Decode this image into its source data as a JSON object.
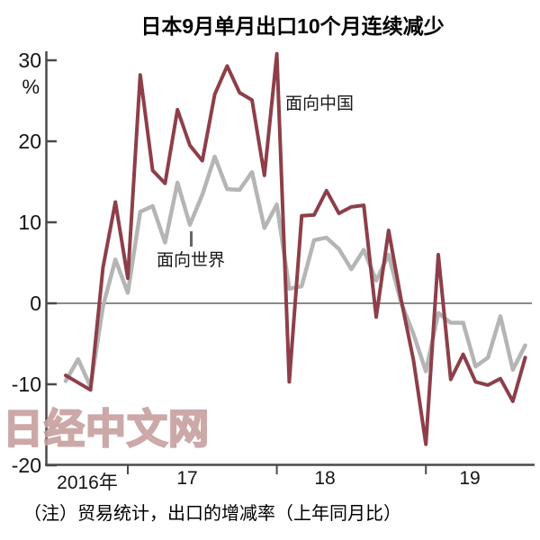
{
  "page": {
    "title": "日本9月单月出口10个月连续减少"
  },
  "chart_data": {
    "type": "line",
    "title": "日本9月单月出口10个月连续减少",
    "ylabel": "%",
    "ylim": [
      -20,
      30
    ],
    "yticks": [
      "30",
      "20",
      "10",
      "0",
      "-10",
      "-20"
    ],
    "ytick_values": [
      30,
      20,
      10,
      0,
      -10,
      -20
    ],
    "xticklabels": [
      "2016年",
      "17",
      "18",
      "19"
    ],
    "grid": "horizontal zero line only",
    "legend_position": "inline annotations",
    "x": [
      "2016-08",
      "2016-09",
      "2016-10",
      "2016-11",
      "2016-12",
      "2017-01",
      "2017-02",
      "2017-03",
      "2017-04",
      "2017-05",
      "2017-06",
      "2017-07",
      "2017-08",
      "2017-09",
      "2017-10",
      "2017-11",
      "2017-12",
      "2018-01",
      "2018-02",
      "2018-03",
      "2018-04",
      "2018-05",
      "2018-06",
      "2018-07",
      "2018-08",
      "2018-09",
      "2018-10",
      "2018-11",
      "2018-12",
      "2019-01",
      "2019-02",
      "2019-03",
      "2019-04",
      "2019-05",
      "2019-06",
      "2019-07",
      "2019-08",
      "2019-09"
    ],
    "series": [
      {
        "name": "面向世界",
        "color": "#b5b5b5",
        "values": [
          -9.6,
          -6.9,
          -10.3,
          -0.4,
          5.4,
          1.3,
          11.3,
          12.0,
          7.5,
          14.9,
          9.7,
          13.4,
          18.1,
          14.1,
          14.0,
          16.2,
          9.3,
          12.2,
          1.8,
          2.1,
          7.8,
          8.1,
          6.7,
          4.2,
          6.6,
          2.8,
          6.0,
          0.1,
          -3.8,
          -8.4,
          -1.2,
          -2.4,
          -2.4,
          -7.8,
          -6.7,
          -1.6,
          -8.2,
          -5.2
        ]
      },
      {
        "name": "面向中国",
        "color": "#8d3f49",
        "values": [
          -8.9,
          -9.8,
          -10.7,
          4.4,
          12.5,
          3.1,
          28.2,
          16.4,
          14.8,
          23.9,
          19.5,
          17.6,
          25.8,
          29.3,
          26.0,
          25.1,
          15.8,
          30.8,
          -9.7,
          10.8,
          10.9,
          13.9,
          11.1,
          11.9,
          12.1,
          -1.7,
          9.0,
          0.5,
          -7.0,
          -17.4,
          6.0,
          -9.4,
          -6.3,
          -9.7,
          -10.1,
          -9.3,
          -12.1,
          -6.7
        ]
      }
    ],
    "note": "（注）贸易统计，出口的增减率（上年同月比）",
    "watermark": "日经中文网",
    "colors": {
      "china_line": "#8d3f49",
      "world_line": "#b5b5b5",
      "axis": "#4a4a4a",
      "zero_line": "#8a8a8a"
    }
  }
}
